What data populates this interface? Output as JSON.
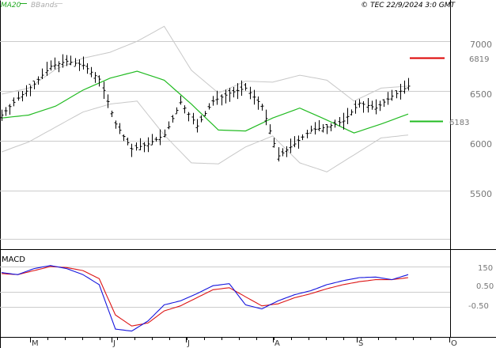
{
  "header": {
    "ma_label": "MA20",
    "bb_label": "BBands",
    "copyright": "© TEC 22/9/2024 3:0 GMT"
  },
  "macd_panel": {
    "label": "MACD"
  },
  "colors": {
    "price": "#000000",
    "ma20": "#22bb22",
    "bbands": "#c8c8c8",
    "grid": "#cccccc",
    "resistance": "#dd0000",
    "support": "#22bb22",
    "macd": "#1515dd",
    "signal": "#dd1515"
  },
  "chart_data": [
    {
      "type": "line",
      "title": "",
      "y_ticks": [
        "7000",
        "6500",
        "6000",
        "5500"
      ],
      "x_ticks": [
        "M",
        "J",
        "J",
        "A",
        "S",
        "O"
      ],
      "ylim": [
        5100,
        7400
      ],
      "grid": true,
      "annotations": [
        {
          "label": "6819",
          "value": 6819,
          "color": "#dd0000"
        },
        {
          "label": "6183",
          "value": 6183,
          "color": "#22bb22"
        }
      ],
      "series": [
        {
          "name": "MA20",
          "x": [
            0,
            10,
            20,
            30,
            40,
            50,
            60,
            70,
            80,
            90,
            100,
            110,
            120,
            130,
            140,
            150
          ],
          "values": [
            6260,
            6290,
            6380,
            6540,
            6660,
            6730,
            6640,
            6400,
            6140,
            6130,
            6260,
            6360,
            6240,
            6110,
            6200,
            6300
          ]
        },
        {
          "name": "BBands upper",
          "x": [
            0,
            10,
            20,
            30,
            40,
            50,
            60,
            70,
            80,
            90,
            100,
            110,
            120,
            130,
            140,
            150
          ],
          "values": [
            6500,
            6560,
            6750,
            6860,
            6920,
            7030,
            7180,
            6740,
            6510,
            6630,
            6620,
            6690,
            6640,
            6430,
            6560,
            6580
          ]
        },
        {
          "name": "BBands lower",
          "x": [
            0,
            10,
            20,
            30,
            40,
            50,
            60,
            70,
            80,
            90,
            100,
            110,
            120,
            130,
            140,
            150
          ],
          "values": [
            5920,
            6020,
            6170,
            6320,
            6400,
            6430,
            6090,
            5810,
            5800,
            5970,
            6080,
            5810,
            5720,
            5890,
            6060,
            6090
          ]
        },
        {
          "name": "Price",
          "x": [
            0,
            6,
            12,
            18,
            24,
            30,
            36,
            42,
            48,
            54,
            60,
            66,
            72,
            78,
            84,
            90,
            96,
            102,
            108,
            114,
            120,
            126,
            132,
            138,
            144,
            150
          ],
          "values": [
            6290,
            6460,
            6600,
            6780,
            6830,
            6790,
            6650,
            6200,
            5950,
            6000,
            6090,
            6420,
            6180,
            6430,
            6510,
            6560,
            6380,
            5880,
            6000,
            6140,
            6170,
            6230,
            6410,
            6360,
            6480,
            6580
          ]
        }
      ]
    },
    {
      "type": "line",
      "title": "",
      "y_ticks": [
        "150",
        "0.50",
        "-0.50"
      ],
      "ylim": [
        -190,
        210
      ],
      "series": [
        {
          "name": "MACD",
          "x": [
            0,
            6,
            12,
            18,
            24,
            30,
            36,
            42,
            48,
            54,
            60,
            66,
            72,
            78,
            84,
            90,
            96,
            102,
            108,
            114,
            120,
            126,
            132,
            138,
            144,
            150
          ],
          "values": [
            120,
            110,
            140,
            155,
            140,
            110,
            60,
            -160,
            -170,
            -120,
            -40,
            -20,
            15,
            55,
            65,
            -40,
            -60,
            -20,
            10,
            30,
            60,
            80,
            95,
            98,
            85,
            110
          ]
        },
        {
          "name": "Signal",
          "x": [
            0,
            6,
            12,
            18,
            24,
            30,
            36,
            42,
            48,
            54,
            60,
            66,
            72,
            78,
            84,
            90,
            96,
            102,
            108,
            114,
            120,
            126,
            132,
            138,
            144,
            150
          ],
          "values": [
            115,
            110,
            130,
            150,
            145,
            130,
            90,
            -90,
            -145,
            -130,
            -70,
            -45,
            -5,
            35,
            45,
            0,
            -45,
            -35,
            -5,
            15,
            40,
            60,
            75,
            85,
            85,
            95
          ]
        }
      ]
    }
  ]
}
